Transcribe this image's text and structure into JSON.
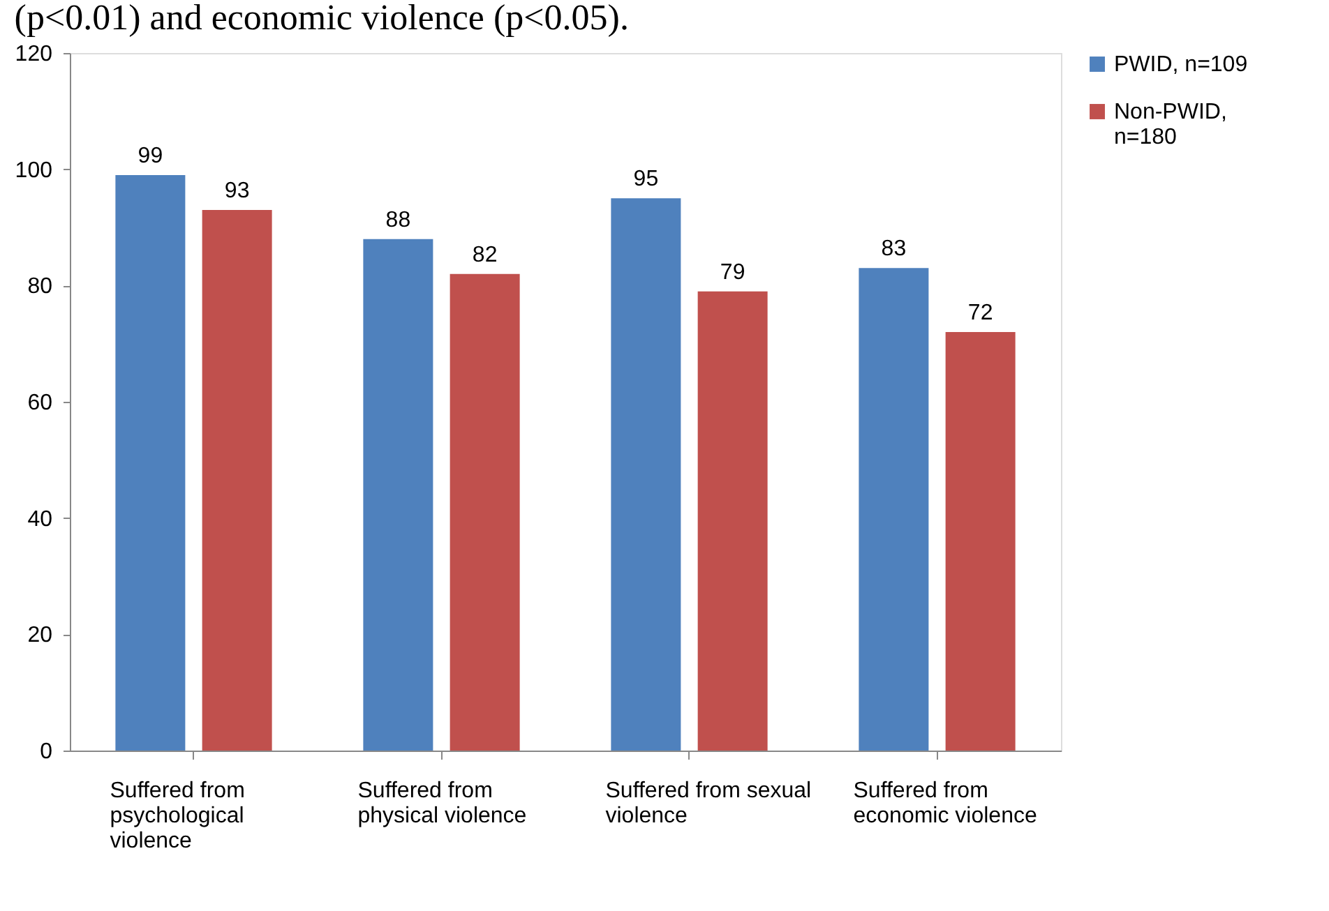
{
  "chart_data": {
    "type": "bar",
    "categories": [
      "Suffered from psychological violence",
      "Suffered from physical violence",
      "Suffered from sexual violence",
      "Suffered from economic violence"
    ],
    "series": [
      {
        "name": "PWID, n=109",
        "color": "#4f81bd",
        "values": [
          99,
          88,
          95,
          83
        ]
      },
      {
        "name": "Non-PWID, n=180",
        "color": "#c0504d",
        "values": [
          93,
          82,
          79,
          72
        ]
      }
    ],
    "ylim": [
      0,
      120
    ],
    "yticks": [
      0,
      20,
      40,
      60,
      80,
      100,
      120
    ],
    "grid": false,
    "data_labels": true,
    "legend": "right",
    "annotations": [
      "(p<0.01) and economic violence (p<0.05)."
    ]
  }
}
